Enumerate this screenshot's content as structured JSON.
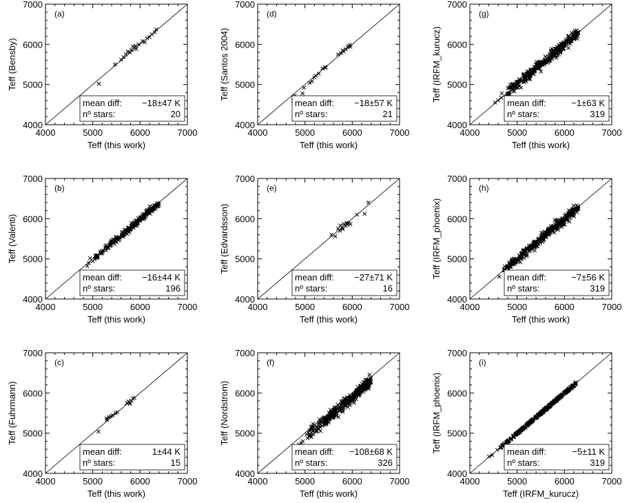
{
  "figure": {
    "background": "#ffffff",
    "foreground": "#000000"
  },
  "chart_data": [
    {
      "id": "a",
      "type": "scatter",
      "annotation": "(a)",
      "xlabel": "Teff (this work)",
      "ylabel": "Teff (Bensby)",
      "xlim": [
        4000,
        7000
      ],
      "ylim": [
        4000,
        7000
      ],
      "xticks": [
        "4000",
        "5000",
        "6000",
        "7000"
      ],
      "yticks": [
        "4000",
        "5000",
        "6000",
        "7000"
      ],
      "diagonal": true,
      "stats": {
        "mean_label": "mean diff:",
        "mean_value": "−18±47 K",
        "n_label": "nº stars:",
        "n_value": "20"
      },
      "points": [
        [
          5130,
          5020
        ],
        [
          5470,
          5500
        ],
        [
          5600,
          5620
        ],
        [
          5650,
          5680
        ],
        [
          5700,
          5750
        ],
        [
          5740,
          5820
        ],
        [
          5780,
          5800
        ],
        [
          5820,
          5860
        ],
        [
          5850,
          5950
        ],
        [
          5880,
          5920
        ],
        [
          5920,
          5880
        ],
        [
          5970,
          6000
        ],
        [
          6050,
          6080
        ],
        [
          6100,
          6050
        ],
        [
          6150,
          6150
        ],
        [
          6200,
          6180
        ],
        [
          6250,
          6250
        ],
        [
          6310,
          6300
        ],
        [
          6340,
          6370
        ],
        [
          5900,
          5960
        ]
      ]
    },
    {
      "id": "d",
      "type": "scatter",
      "annotation": "(d)",
      "xlabel": "Teff (this work)",
      "ylabel": "Teff (Santos 2004)",
      "xlim": [
        4000,
        7000
      ],
      "ylim": [
        4000,
        7000
      ],
      "xticks": [
        "4000",
        "5000",
        "6000",
        "7000"
      ],
      "yticks": [
        "4000",
        "5000",
        "6000",
        "7000"
      ],
      "diagonal": true,
      "stats": {
        "mean_label": "mean diff:",
        "mean_value": "−18±57 K",
        "n_label": "nº stars:",
        "n_value": "21"
      },
      "points": [
        [
          4750,
          4600
        ],
        [
          4780,
          4720
        ],
        [
          4950,
          4780
        ],
        [
          4980,
          4920
        ],
        [
          5100,
          5040
        ],
        [
          5150,
          5080
        ],
        [
          5200,
          5180
        ],
        [
          5230,
          5220
        ],
        [
          5290,
          5270
        ],
        [
          5370,
          5400
        ],
        [
          5420,
          5430
        ],
        [
          5440,
          5420
        ],
        [
          5700,
          5750
        ],
        [
          5760,
          5780
        ],
        [
          5820,
          5830
        ],
        [
          5860,
          5880
        ],
        [
          5900,
          5930
        ],
        [
          5920,
          5960
        ],
        [
          5950,
          5990
        ],
        [
          5960,
          5940
        ],
        [
          5800,
          5850
        ]
      ]
    },
    {
      "id": "g",
      "type": "scatter",
      "annotation": "(g)",
      "xlabel": "Teff (this work)",
      "ylabel": "Teff (IRFM_kurucz)",
      "xlim": [
        4000,
        7000
      ],
      "ylim": [
        4000,
        7000
      ],
      "xticks": [
        "4000",
        "5000",
        "6000",
        "7000"
      ],
      "yticks": [
        "4000",
        "5000",
        "6000",
        "7000"
      ],
      "diagonal": true,
      "stats": {
        "mean_label": "mean diff:",
        "mean_value": "−1±63 K",
        "n_label": "nº stars:",
        "n_value": "319"
      },
      "cloud": {
        "count": 319,
        "xmin": 4500,
        "xmax": 6300,
        "slope": 1.0,
        "offset": -1,
        "scatter": 63,
        "seed": 7
      }
    },
    {
      "id": "b",
      "type": "scatter",
      "annotation": "(b)",
      "xlabel": "Teff (this work)",
      "ylabel": "Teff (Valenti)",
      "xlim": [
        4000,
        7000
      ],
      "ylim": [
        4000,
        7000
      ],
      "xticks": [
        "4000",
        "5000",
        "6000",
        "7000"
      ],
      "yticks": [
        "4000",
        "5000",
        "6000",
        "7000"
      ],
      "diagonal": true,
      "stats": {
        "mean_label": "mean diff:",
        "mean_value": "−16±44 K",
        "n_label": "nº stars:",
        "n_value": "196"
      },
      "cloud": {
        "count": 196,
        "xmin": 4750,
        "xmax": 6400,
        "slope": 1.0,
        "offset": -16,
        "scatter": 44,
        "seed": 11
      }
    },
    {
      "id": "e",
      "type": "scatter",
      "annotation": "(e)",
      "xlabel": "Teff (this work)",
      "ylabel": "Teff (Edvardsson)",
      "xlim": [
        4000,
        7000
      ],
      "ylim": [
        4000,
        7000
      ],
      "xticks": [
        "4000",
        "5000",
        "6000",
        "7000"
      ],
      "yticks": [
        "4000",
        "5000",
        "6000",
        "7000"
      ],
      "diagonal": true,
      "stats": {
        "mean_label": "mean diff:",
        "mean_value": "−27±71 K",
        "n_label": "nº stars:",
        "n_value": "16"
      },
      "points": [
        [
          5560,
          5600
        ],
        [
          5640,
          5560
        ],
        [
          5700,
          5750
        ],
        [
          5750,
          5830
        ],
        [
          5790,
          5780
        ],
        [
          5820,
          5870
        ],
        [
          5860,
          5820
        ],
        [
          5880,
          5900
        ],
        [
          5920,
          5880
        ],
        [
          5960,
          5870
        ],
        [
          6100,
          6100
        ],
        [
          6260,
          6120
        ],
        [
          6340,
          6400
        ],
        [
          5800,
          5740
        ],
        [
          5900,
          5850
        ],
        [
          5740,
          5700
        ]
      ]
    },
    {
      "id": "h",
      "type": "scatter",
      "annotation": "(h)",
      "xlabel": "Teff (this work)",
      "ylabel": "Teff (IRFM_phoenix)",
      "xlim": [
        4000,
        7000
      ],
      "ylim": [
        4000,
        7000
      ],
      "xticks": [
        "4000",
        "5000",
        "6000",
        "7000"
      ],
      "yticks": [
        "4000",
        "5000",
        "6000",
        "7000"
      ],
      "diagonal": true,
      "stats": {
        "mean_label": "mean diff:",
        "mean_value": "−7±56 K",
        "n_label": "nº stars:",
        "n_value": "319"
      },
      "cloud": {
        "count": 319,
        "xmin": 4500,
        "xmax": 6300,
        "slope": 1.0,
        "offset": -7,
        "scatter": 56,
        "seed": 23
      }
    },
    {
      "id": "c",
      "type": "scatter",
      "annotation": "(c)",
      "xlabel": "Teff (this work)",
      "ylabel": "Teff (Fuhrmann)",
      "xlim": [
        4000,
        7000
      ],
      "ylim": [
        4000,
        7000
      ],
      "xticks": [
        "4000",
        "5000",
        "6000",
        "7000"
      ],
      "yticks": [
        "4000",
        "5000",
        "6000",
        "7000"
      ],
      "diagonal": true,
      "stats": {
        "mean_label": "mean diff:",
        "mean_value": "1±44 K",
        "n_label": "nº stars:",
        "n_value": "15"
      },
      "points": [
        [
          5120,
          5040
        ],
        [
          5290,
          5370
        ],
        [
          5340,
          5400
        ],
        [
          5380,
          5420
        ],
        [
          5420,
          5450
        ],
        [
          5480,
          5500
        ],
        [
          5520,
          5520
        ],
        [
          5720,
          5750
        ],
        [
          5750,
          5790
        ],
        [
          5780,
          5760
        ],
        [
          5820,
          5810
        ],
        [
          5850,
          5860
        ],
        [
          5880,
          5880
        ],
        [
          5790,
          5730
        ],
        [
          5300,
          5330
        ]
      ]
    },
    {
      "id": "f",
      "type": "scatter",
      "annotation": "(f)",
      "xlabel": "Teff (this work)",
      "ylabel": "Teff (Nordstrom)",
      "xlim": [
        4000,
        7000
      ],
      "ylim": [
        4000,
        7000
      ],
      "xticks": [
        "4000",
        "5000",
        "6000",
        "7000"
      ],
      "yticks": [
        "4000",
        "5000",
        "6000",
        "7000"
      ],
      "diagonal": true,
      "stats": {
        "mean_label": "mean diff:",
        "mean_value": "−108±68 K",
        "n_label": "nº stars:",
        "n_value": "326"
      },
      "cloud": {
        "count": 326,
        "xmin": 4800,
        "xmax": 6400,
        "slope": 1.0,
        "offset": -108,
        "scatter": 68,
        "seed": 31
      }
    },
    {
      "id": "i",
      "type": "scatter",
      "annotation": "(i)",
      "xlabel": "Teff (IRFM_kurucz)",
      "ylabel": "Teff (IRFM_phoenix)",
      "xlim": [
        4000,
        7000
      ],
      "ylim": [
        4000,
        7000
      ],
      "xticks": [
        "4000",
        "5000",
        "6000",
        "7000"
      ],
      "yticks": [
        "4000",
        "5000",
        "6000",
        "7000"
      ],
      "diagonal": true,
      "stats": {
        "mean_label": "mean diff:",
        "mean_value": "−5±11 K",
        "n_label": "nº stars:",
        "n_value": "319"
      },
      "cloud": {
        "count": 319,
        "xmin": 4350,
        "xmax": 6250,
        "slope": 1.0,
        "offset": -5,
        "scatter": 11,
        "seed": 47
      }
    }
  ]
}
